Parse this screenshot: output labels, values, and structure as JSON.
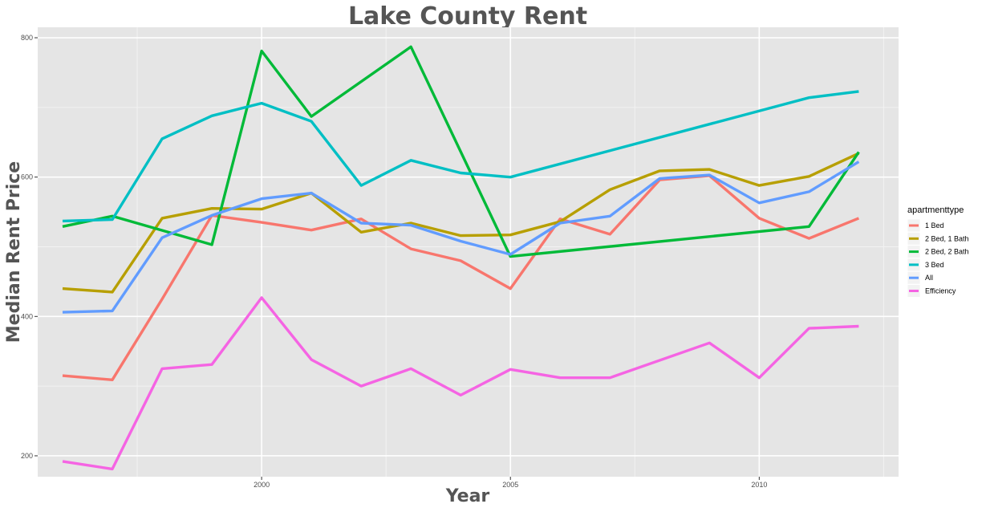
{
  "chart_data": {
    "type": "line",
    "title": "Lake County Rent",
    "xlabel": "Year",
    "ylabel": "Median Rent Price",
    "xlim": [
      1995.5,
      2012.8
    ],
    "ylim": [
      170,
      815
    ],
    "x_ticks": [
      2000,
      2005,
      2010
    ],
    "y_ticks": [
      200,
      400,
      600,
      800
    ],
    "grid": true,
    "legend": {
      "title": "apartmenttype",
      "position": "right"
    },
    "series": [
      {
        "name": "1 Bed",
        "color": "#F8766D",
        "x": [
          1996,
          1997,
          1998,
          1999,
          2000,
          2001,
          2002,
          2003,
          2004,
          2005,
          2006,
          2007,
          2008,
          2009,
          2010,
          2011,
          2012
        ],
        "y": [
          315,
          309,
          425,
          545,
          535,
          524,
          540,
          497,
          480,
          440,
          540,
          518,
          596,
          602,
          541,
          512,
          541
        ]
      },
      {
        "name": "2 Bed, 1 Bath",
        "color": "#B79F00",
        "x": [
          1996,
          1997,
          1998,
          1999,
          2000,
          2001,
          2002,
          2003,
          2004,
          2005,
          2006,
          2007,
          2008,
          2009,
          2010,
          2011,
          2012
        ],
        "y": [
          440,
          435,
          541,
          555,
          554,
          577,
          521,
          534,
          516,
          517,
          536,
          582,
          609,
          611,
          588,
          601,
          634
        ]
      },
      {
        "name": "2 Bed, 2 Bath",
        "color": "#00BA38",
        "x": [
          1996,
          1997,
          1999,
          2000,
          2001,
          2003,
          2005,
          2011,
          2012
        ],
        "y": [
          529,
          544,
          503,
          781,
          687,
          787,
          486,
          529,
          636
        ]
      },
      {
        "name": "3 Bed",
        "color": "#00BFC4",
        "x": [
          1996,
          1997,
          1998,
          1999,
          2000,
          2001,
          2002,
          2003,
          2004,
          2005,
          2011,
          2012
        ],
        "y": [
          537,
          539,
          655,
          688,
          706,
          680,
          588,
          624,
          606,
          600,
          714,
          723
        ]
      },
      {
        "name": "All",
        "color": "#619CFF",
        "x": [
          1996,
          1997,
          1998,
          1999,
          2000,
          2001,
          2002,
          2003,
          2004,
          2005,
          2006,
          2007,
          2008,
          2009,
          2010,
          2011,
          2012
        ],
        "y": [
          406,
          408,
          513,
          545,
          569,
          577,
          534,
          531,
          508,
          489,
          534,
          544,
          598,
          603,
          563,
          579,
          622
        ]
      },
      {
        "name": "Efficiency",
        "color": "#F564E3",
        "x": [
          1996,
          1997,
          1998,
          1999,
          2000,
          2001,
          2002,
          2003,
          2004,
          2005,
          2006,
          2007,
          2009,
          2010,
          2011,
          2012
        ],
        "y": [
          192,
          181,
          325,
          331,
          427,
          338,
          300,
          325,
          287,
          324,
          312,
          312,
          362,
          312,
          383,
          386
        ]
      }
    ]
  }
}
